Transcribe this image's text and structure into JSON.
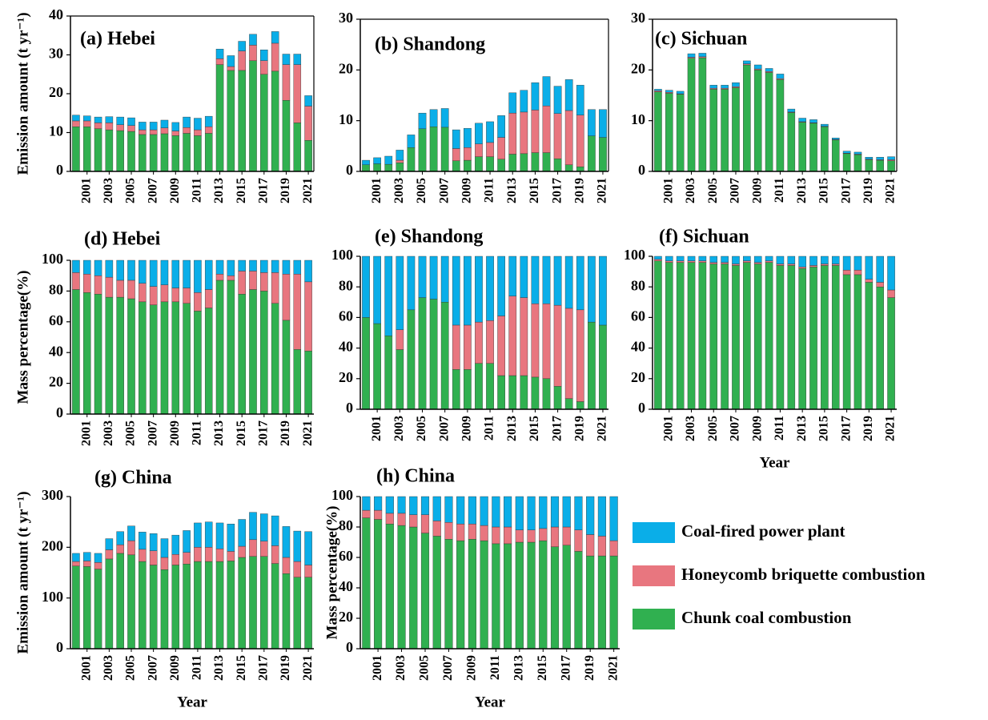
{
  "chart_data": [
    {
      "type": "bar",
      "stacked": true,
      "title": "(a) Hebei",
      "ylabel": "Emission amount (t yr⁻¹)",
      "frame": true,
      "categories": [
        null,
        "2001",
        null,
        "2003",
        null,
        "2005",
        null,
        "2007",
        null,
        "2009",
        null,
        "2011",
        null,
        "2013",
        null,
        "2015",
        null,
        "2017",
        null,
        "2019",
        null,
        "2021"
      ],
      "ylim": [
        0,
        40
      ],
      "yticks": [
        0,
        10,
        20,
        30,
        40
      ],
      "series": [
        {
          "color": "#30b050",
          "values": [
            11.5,
            11.5,
            11,
            10.7,
            10.5,
            10.3,
            9.5,
            9.5,
            9.7,
            9.2,
            9.8,
            9.2,
            9.8,
            27.5,
            26,
            26,
            28.5,
            25,
            25.8,
            18.3,
            12.5,
            8
          ]
        },
        {
          "color": "#e8767f",
          "values": [
            1.5,
            1.5,
            1.5,
            1.8,
            1.5,
            1.5,
            1.2,
            1.2,
            1.5,
            1.2,
            1.5,
            1.5,
            1.7,
            1.5,
            1,
            5,
            4,
            3.5,
            7.2,
            9.2,
            15,
            8.8
          ]
        },
        {
          "color": "#0aaee8",
          "values": [
            1.5,
            1.3,
            1.5,
            1.6,
            2,
            2,
            2,
            2,
            2,
            2.2,
            2.7,
            3,
            2.7,
            2.5,
            2.8,
            2.5,
            2.8,
            2.8,
            3,
            2.7,
            2.7,
            2.7
          ]
        }
      ]
    },
    {
      "type": "bar",
      "stacked": true,
      "title": "(b) Shandong",
      "frame": true,
      "categories": [
        null,
        "2001",
        null,
        "2003",
        null,
        "2005",
        null,
        "2007",
        null,
        "2009",
        null,
        "2011",
        null,
        "2013",
        null,
        "2015",
        null,
        "2017",
        null,
        "2019",
        null,
        "2021"
      ],
      "ylim": [
        0,
        30
      ],
      "yticks": [
        0,
        10,
        20,
        30
      ],
      "series": [
        {
          "color": "#30b050",
          "values": [
            1.3,
            1.5,
            1.4,
            1.7,
            4.7,
            8.4,
            8.8,
            8.7,
            2.1,
            2.2,
            2.9,
            2.9,
            2.4,
            3.4,
            3.5,
            3.7,
            3.7,
            2.5,
            1.3,
            0.9,
            7,
            6.7
          ]
        },
        {
          "color": "#e8767f",
          "values": [
            0,
            0,
            0,
            0.5,
            0,
            0,
            0,
            0,
            2.4,
            2.5,
            2.5,
            2.8,
            4.3,
            8.1,
            8.2,
            8.4,
            9.2,
            8.9,
            10.7,
            10.2,
            0,
            0
          ]
        },
        {
          "color": "#0aaee8",
          "values": [
            0.9,
            1.2,
            1.6,
            2.0,
            2.5,
            3.1,
            3.4,
            3.7,
            3.7,
            3.8,
            4.1,
            4.1,
            4.3,
            4.0,
            4.3,
            5.4,
            5.8,
            5.4,
            6.1,
            5.9,
            5.2,
            5.5
          ]
        }
      ]
    },
    {
      "type": "bar",
      "stacked": true,
      "title": "(c) Sichuan",
      "frame": true,
      "categories": [
        null,
        "2001",
        null,
        "2003",
        null,
        "2005",
        null,
        "2007",
        null,
        "2009",
        null,
        "2011",
        null,
        "2013",
        null,
        "2015",
        null,
        "2017",
        null,
        "2019",
        null,
        "2021"
      ],
      "ylim": [
        0,
        30
      ],
      "yticks": [
        0,
        10,
        20,
        30
      ],
      "series": [
        {
          "color": "#30b050",
          "values": [
            15.7,
            15.4,
            15.2,
            22.3,
            22.4,
            16.2,
            16.2,
            16.5,
            21,
            20,
            19.5,
            18.1,
            11.6,
            9.7,
            9.5,
            8.8,
            6.2,
            3.5,
            3.3,
            2.3,
            2.2,
            2.1
          ]
        },
        {
          "color": "#e8767f",
          "values": [
            0.2,
            0.2,
            0.1,
            0.2,
            0.2,
            0.2,
            0.2,
            0.2,
            0.2,
            0.2,
            0.2,
            0.2,
            0.1,
            0.1,
            0.1,
            0.1,
            0.1,
            0.1,
            0.1,
            0.1,
            0.1,
            0.2
          ]
        },
        {
          "color": "#0aaee8",
          "values": [
            0.3,
            0.4,
            0.5,
            0.7,
            0.7,
            0.6,
            0.6,
            0.8,
            0.6,
            0.8,
            0.6,
            0.9,
            0.6,
            0.7,
            0.6,
            0.4,
            0.3,
            0.4,
            0.4,
            0.4,
            0.5,
            0.6
          ]
        }
      ]
    },
    {
      "type": "bar",
      "stacked": true,
      "title": "(d) Hebei",
      "ylabel": "Mass percentage(%)",
      "frame": false,
      "categories": [
        null,
        "2001",
        null,
        "2003",
        null,
        "2005",
        null,
        "2007",
        null,
        "2009",
        null,
        "2011",
        null,
        "2013",
        null,
        "2015",
        null,
        "2017",
        null,
        "2019",
        null,
        "2021"
      ],
      "ylim": [
        0,
        100
      ],
      "yticks": [
        0,
        20,
        40,
        60,
        80,
        100
      ],
      "series": [
        {
          "color": "#30b050",
          "values": [
            81,
            79,
            78,
            76,
            76,
            75,
            73,
            71,
            73,
            73,
            72,
            67,
            69,
            87,
            87,
            78,
            81,
            80,
            72,
            61,
            42,
            41
          ]
        },
        {
          "color": "#e8767f",
          "values": [
            11,
            12,
            12,
            13,
            11,
            12,
            12,
            12,
            11,
            9,
            10,
            12,
            12,
            4,
            3,
            15,
            12,
            12,
            20,
            30,
            49,
            45
          ]
        },
        {
          "color": "#0aaee8",
          "values": [
            8,
            9,
            10,
            11,
            13,
            13,
            15,
            17,
            16,
            18,
            18,
            21,
            19,
            9,
            10,
            7,
            7,
            8,
            8,
            9,
            9,
            14
          ]
        }
      ]
    },
    {
      "type": "bar",
      "stacked": true,
      "title": "(e) Shandong",
      "frame": false,
      "categories": [
        null,
        "2001",
        null,
        "2003",
        null,
        "2005",
        null,
        "2007",
        null,
        "2009",
        null,
        "2011",
        null,
        "2013",
        null,
        "2015",
        null,
        "2017",
        null,
        "2019",
        null,
        "2021"
      ],
      "ylim": [
        0,
        100
      ],
      "yticks": [
        0,
        20,
        40,
        60,
        80,
        100
      ],
      "series": [
        {
          "color": "#30b050",
          "values": [
            60,
            56,
            48,
            39,
            65,
            73,
            72,
            70,
            26,
            26,
            30,
            30,
            22,
            22,
            22,
            21,
            20,
            15,
            7,
            5,
            57,
            55
          ]
        },
        {
          "color": "#e8767f",
          "values": [
            0,
            0,
            0,
            13,
            0,
            0,
            0,
            0,
            29,
            29,
            27,
            28,
            39,
            52,
            51,
            48,
            49,
            53,
            59,
            60,
            0,
            0
          ]
        },
        {
          "color": "#0aaee8",
          "values": [
            40,
            44,
            52,
            48,
            35,
            27,
            28,
            30,
            45,
            45,
            43,
            42,
            39,
            26,
            27,
            31,
            31,
            32,
            34,
            35,
            43,
            45
          ]
        }
      ]
    },
    {
      "type": "bar",
      "stacked": true,
      "title": "(f) Sichuan",
      "xlabel": "Year",
      "frame": false,
      "categories": [
        null,
        "2001",
        null,
        "2003",
        null,
        "2005",
        null,
        "2007",
        null,
        "2009",
        null,
        "2011",
        null,
        "2013",
        null,
        "2015",
        null,
        "2017",
        null,
        "2019",
        null,
        "2021"
      ],
      "ylim": [
        0,
        100
      ],
      "yticks": [
        0,
        20,
        40,
        60,
        80,
        100
      ],
      "series": [
        {
          "color": "#30b050",
          "values": [
            97,
            96,
            96,
            96,
            96,
            95,
            95,
            94,
            96,
            95,
            96,
            94,
            94,
            92,
            93,
            94,
            94,
            88,
            88,
            83,
            80,
            73
          ]
        },
        {
          "color": "#e8767f",
          "values": [
            1,
            1,
            1,
            1,
            1,
            1,
            1,
            1,
            1,
            1,
            1,
            1,
            1,
            1,
            1,
            1,
            1,
            3,
            3,
            2,
            3,
            5
          ]
        },
        {
          "color": "#0aaee8",
          "values": [
            2,
            3,
            3,
            3,
            3,
            4,
            4,
            5,
            3,
            4,
            3,
            5,
            5,
            7,
            6,
            5,
            5,
            9,
            9,
            15,
            17,
            22
          ]
        }
      ]
    },
    {
      "type": "bar",
      "stacked": true,
      "title": "(g) China",
      "ylabel": "Emission amount (t yr⁻¹)",
      "xlabel": "Year",
      "frame": false,
      "categories": [
        null,
        "2001",
        null,
        "2003",
        null,
        "2005",
        null,
        "2007",
        null,
        "2009",
        null,
        "2011",
        null,
        "2013",
        null,
        "2015",
        null,
        "2017",
        null,
        "2019",
        null,
        "2021"
      ],
      "ylim": [
        0,
        300
      ],
      "yticks": [
        0,
        100,
        200,
        300
      ],
      "series": [
        {
          "color": "#30b050",
          "values": [
            163,
            162,
            157,
            177,
            188,
            185,
            172,
            165,
            156,
            165,
            167,
            172,
            172,
            172,
            173,
            180,
            182,
            182,
            168,
            148,
            141,
            141
          ]
        },
        {
          "color": "#e8767f",
          "values": [
            9,
            11,
            13,
            18,
            17,
            28,
            24,
            28,
            24,
            21,
            23,
            28,
            28,
            25,
            19,
            22,
            33,
            30,
            35,
            32,
            31,
            24
          ]
        },
        {
          "color": "#0aaee8",
          "values": [
            16,
            17,
            18,
            22,
            26,
            29,
            34,
            34,
            37,
            38,
            43,
            48,
            50,
            51,
            54,
            53,
            54,
            54,
            59,
            61,
            60,
            66
          ]
        }
      ]
    },
    {
      "type": "bar",
      "stacked": true,
      "title": "(h) China",
      "ylabel": "Mass percentage(%)",
      "xlabel": "Year",
      "frame": false,
      "categories": [
        null,
        "2001",
        null,
        "2003",
        null,
        "2005",
        null,
        "2007",
        null,
        "2009",
        null,
        "2011",
        null,
        "2013",
        null,
        "2015",
        null,
        "2017",
        null,
        "2019",
        null,
        "2021"
      ],
      "ylim": [
        0,
        100
      ],
      "yticks": [
        0,
        20,
        40,
        60,
        80,
        100
      ],
      "series": [
        {
          "name": "Chunk coal combustion",
          "color": "#30b050",
          "values": [
            86,
            85,
            82,
            81,
            80,
            76,
            74,
            72,
            71,
            72,
            71,
            69,
            69,
            70,
            70,
            71,
            67,
            68,
            64,
            61,
            61,
            61
          ]
        },
        {
          "name": "Honeycomb briquette combustion",
          "color": "#e8767f",
          "values": [
            5,
            6,
            7,
            8,
            8,
            12,
            10,
            11,
            11,
            10,
            10,
            11,
            11,
            8,
            8,
            8,
            13,
            12,
            14,
            14,
            13,
            10
          ]
        },
        {
          "name": "Coal-fired power plant",
          "color": "#0aaee8",
          "values": [
            9,
            9,
            11,
            11,
            12,
            12,
            16,
            17,
            18,
            18,
            19,
            20,
            20,
            22,
            22,
            21,
            20,
            20,
            22,
            25,
            26,
            29
          ]
        }
      ]
    }
  ]
}
